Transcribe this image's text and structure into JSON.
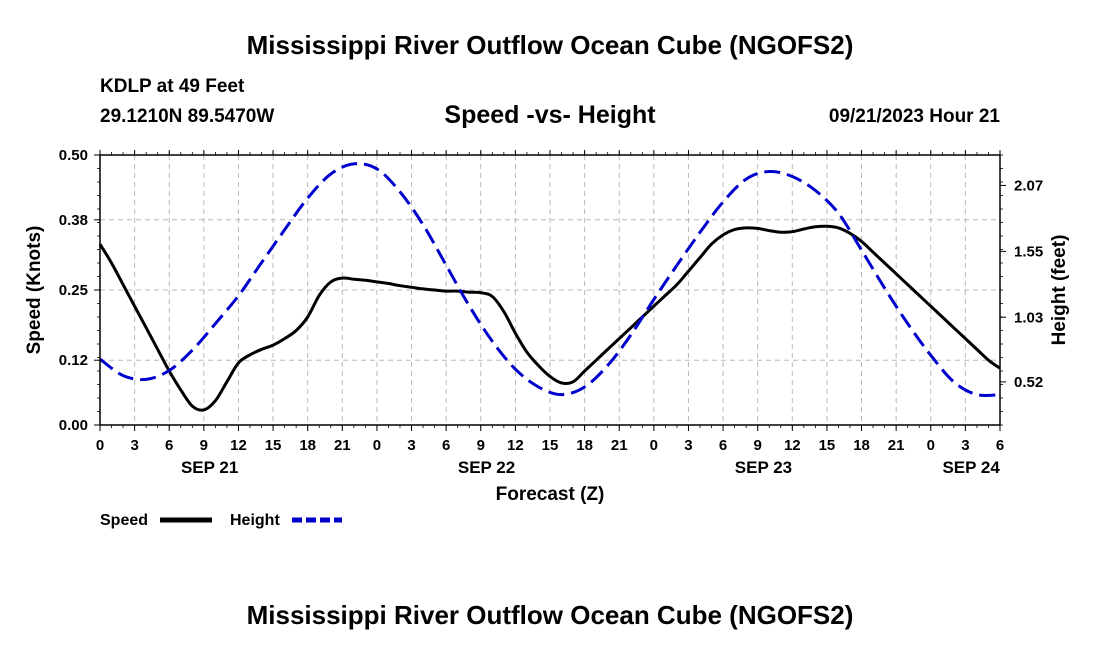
{
  "header": {
    "title": "Mississippi River Outflow Ocean Cube (NGOFS2)",
    "station": "KDLP at 49 Feet",
    "coords": "29.1210N  89.5470W",
    "datetime": "09/21/2023 Hour 21",
    "footer_title": "Mississippi River Outflow Ocean Cube (NGOFS2)"
  },
  "chart_data": {
    "type": "line",
    "title": "Speed -vs- Height",
    "xlabel": "Forecast (Z)",
    "ylabel_left": "Speed (Knots)",
    "ylabel_right": "Height (feet)",
    "x_range_hours": [
      0,
      78
    ],
    "ylim_left": [
      0,
      0.5
    ],
    "ylim_right": [
      0.18,
      2.31
    ],
    "left_ticks": [
      "0.00",
      "0.12",
      "0.25",
      "0.38",
      "0.50"
    ],
    "right_ticks": [
      {
        "label": "0.52",
        "value": 0.52
      },
      {
        "label": "1.03",
        "value": 1.03
      },
      {
        "label": "1.55",
        "value": 1.55
      },
      {
        "label": "2.07",
        "value": 2.07
      }
    ],
    "x_tick_labels": [
      "0",
      "3",
      "6",
      "9",
      "12",
      "15",
      "18",
      "21",
      "0",
      "3",
      "6",
      "9",
      "12",
      "15",
      "18",
      "21",
      "0",
      "3",
      "6",
      "9",
      "12",
      "15",
      "18",
      "21",
      "0",
      "3",
      "6"
    ],
    "date_labels": [
      {
        "label": "SEP 21",
        "hour": 9.5
      },
      {
        "label": "SEP 22",
        "hour": 33.5
      },
      {
        "label": "SEP 23",
        "hour": 57.5
      },
      {
        "label": "SEP 24",
        "hour": 75.5
      }
    ],
    "grid": true,
    "legend_position": "bottom-left",
    "series": [
      {
        "name": "Speed",
        "axis": "left",
        "color": "#000000",
        "style": "solid",
        "x": [
          0,
          1,
          2,
          3,
          4,
          5,
          6,
          7,
          8,
          9,
          10,
          11,
          12,
          13,
          14,
          15,
          16,
          17,
          18,
          19,
          20,
          21,
          22,
          23,
          24,
          25,
          26,
          27,
          28,
          29,
          30,
          31,
          32,
          33,
          34,
          35,
          36,
          37,
          38,
          39,
          40,
          41,
          42,
          43,
          44,
          45,
          46,
          47,
          48,
          49,
          50,
          51,
          52,
          53,
          54,
          55,
          56,
          57,
          58,
          59,
          60,
          61,
          62,
          63,
          64,
          65,
          66,
          67,
          68,
          69,
          70,
          71,
          72,
          73,
          74,
          75,
          76,
          77,
          78
        ],
        "values": [
          0.335,
          0.3,
          0.26,
          0.22,
          0.18,
          0.14,
          0.1,
          0.065,
          0.035,
          0.028,
          0.045,
          0.08,
          0.115,
          0.13,
          0.14,
          0.148,
          0.16,
          0.175,
          0.2,
          0.24,
          0.265,
          0.272,
          0.27,
          0.268,
          0.265,
          0.262,
          0.258,
          0.255,
          0.252,
          0.25,
          0.248,
          0.248,
          0.246,
          0.245,
          0.238,
          0.21,
          0.17,
          0.135,
          0.11,
          0.09,
          0.078,
          0.08,
          0.1,
          0.12,
          0.14,
          0.16,
          0.18,
          0.2,
          0.22,
          0.24,
          0.26,
          0.285,
          0.31,
          0.335,
          0.352,
          0.362,
          0.365,
          0.364,
          0.36,
          0.357,
          0.358,
          0.363,
          0.367,
          0.368,
          0.365,
          0.355,
          0.34,
          0.32,
          0.3,
          0.28,
          0.26,
          0.24,
          0.22,
          0.2,
          0.18,
          0.16,
          0.14,
          0.12,
          0.105
        ]
      },
      {
        "name": "Height",
        "axis": "right",
        "color": "#0000cc",
        "style": "dashed",
        "x": [
          0,
          2,
          4,
          6,
          8,
          10,
          12,
          14,
          16,
          18,
          20,
          22,
          24,
          26,
          28,
          30,
          32,
          34,
          36,
          38,
          40,
          42,
          44,
          46,
          48,
          50,
          52,
          54,
          56,
          58,
          60,
          62,
          64,
          66,
          68,
          70,
          72,
          74,
          76,
          78
        ],
        "values": [
          0.7,
          0.57,
          0.54,
          0.61,
          0.77,
          0.98,
          1.2,
          1.46,
          1.72,
          1.97,
          2.16,
          2.24,
          2.2,
          2.02,
          1.76,
          1.44,
          1.12,
          0.84,
          0.62,
          0.48,
          0.42,
          0.48,
          0.65,
          0.89,
          1.17,
          1.44,
          1.7,
          1.94,
          2.12,
          2.18,
          2.14,
          2.03,
          1.85,
          1.56,
          1.26,
          0.98,
          0.73,
          0.52,
          0.42,
          0.42
        ]
      }
    ]
  }
}
